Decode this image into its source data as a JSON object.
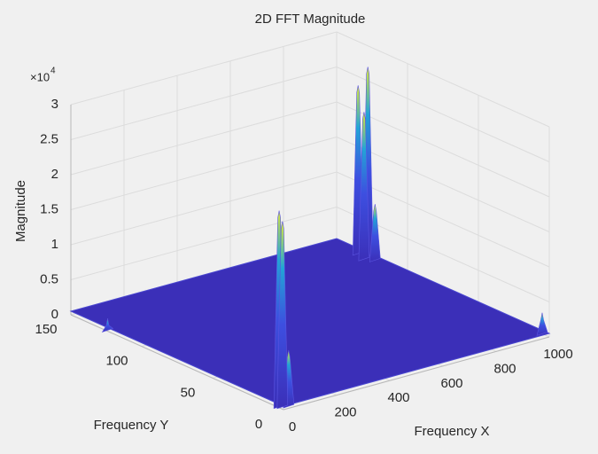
{
  "chart_data": {
    "type": "surface3d",
    "title": "2D FFT Magnitude",
    "xlabel": "Frequency X",
    "ylabel": "Frequency Y",
    "zlabel": "Magnitude",
    "z_multiplier": "×10",
    "z_exponent": "4",
    "xlim": [
      0,
      1000
    ],
    "xticks": [
      0,
      200,
      400,
      600,
      800,
      1000
    ],
    "ylim": [
      0,
      150
    ],
    "yticks": [
      0,
      50,
      100,
      150
    ],
    "zlim": [
      0,
      30000
    ],
    "zticks": [
      0,
      {
        "value": 5000,
        "label": "0.5"
      },
      {
        "value": 10000,
        "label": "1"
      },
      {
        "value": 15000,
        "label": "1.5"
      },
      {
        "value": 20000,
        "label": "2"
      },
      {
        "value": 25000,
        "label": "2.5"
      },
      {
        "value": 30000,
        "label": "3"
      }
    ],
    "grid": true,
    "colormap": "parula",
    "floor_color": "#3b2fb8",
    "x": [
      5,
      1000,
      990,
      975,
      995,
      1000,
      30,
      18,
      5,
      12
    ],
    "y": [
      125,
      128,
      133,
      126,
      122,
      5,
      2,
      6,
      4,
      3
    ],
    "z": [
      1700,
      27000,
      24000,
      21000,
      8000,
      3000,
      8000,
      18000,
      28000,
      26500
    ]
  }
}
